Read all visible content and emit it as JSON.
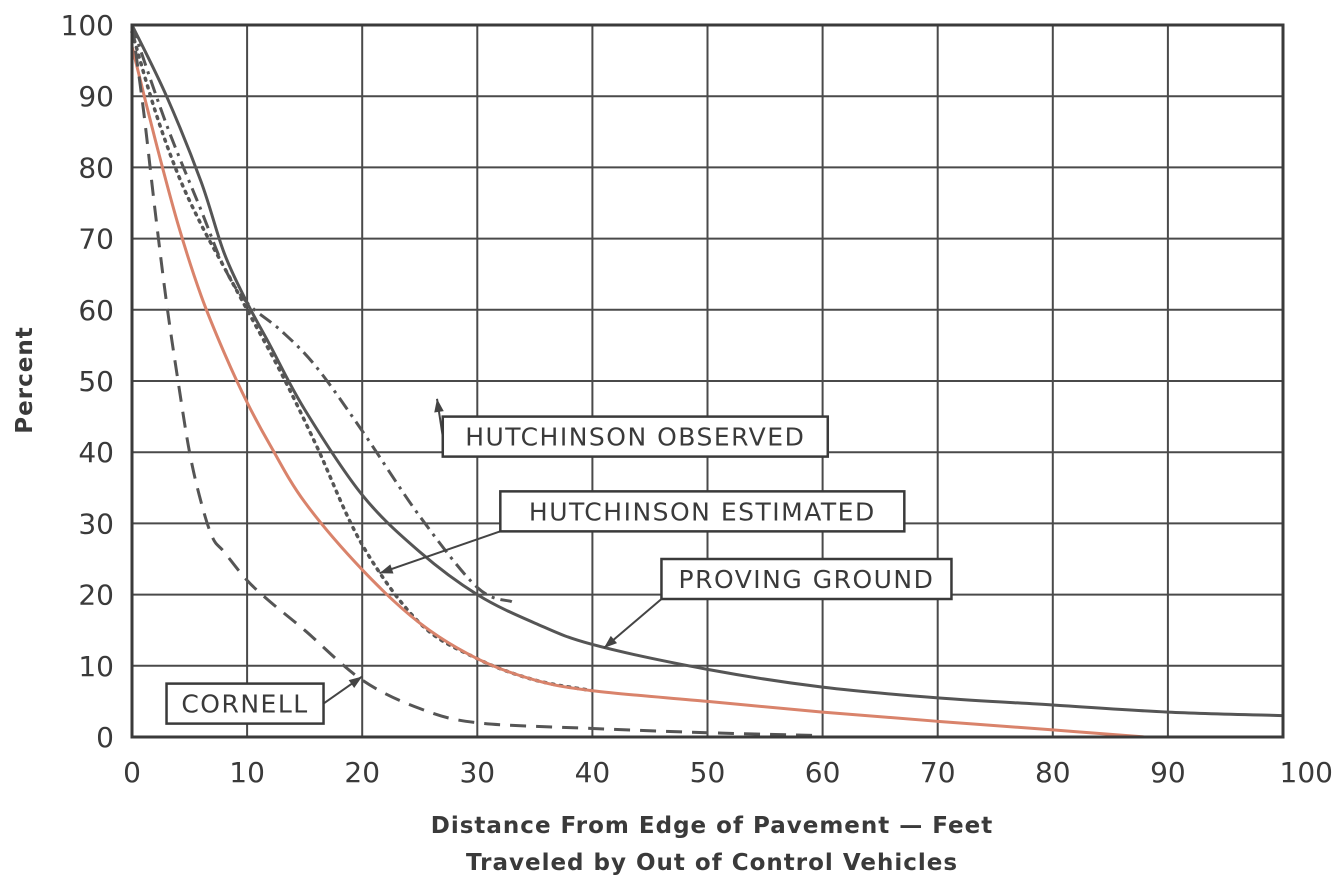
{
  "chart_data": {
    "type": "line",
    "xlabel_lines": [
      "Distance From Edge of Pavement — Feet",
      "Traveled by Out of Control Vehicles"
    ],
    "ylabel": "Percent",
    "xlim": [
      0,
      100
    ],
    "ylim": [
      0,
      100
    ],
    "x_ticks": [
      0,
      10,
      20,
      30,
      40,
      50,
      60,
      70,
      80,
      90,
      100
    ],
    "y_ticks": [
      0,
      10,
      20,
      30,
      40,
      50,
      60,
      70,
      80,
      90,
      100
    ],
    "grid": true,
    "series": [
      {
        "name": "PROVING GROUND",
        "style": "solid",
        "color": "#555555",
        "x": [
          0,
          3,
          6,
          8,
          10,
          12,
          15,
          20,
          25,
          30,
          35,
          40,
          50,
          60,
          70,
          80,
          90,
          100
        ],
        "y": [
          100,
          90,
          78,
          68,
          61,
          55,
          46,
          34,
          26,
          20,
          16,
          13,
          9.5,
          7,
          5.5,
          4.5,
          3.5,
          3
        ]
      },
      {
        "name": "HUTCHINSON OBSERVED",
        "style": "dashdot",
        "color": "#555555",
        "x": [
          0,
          3,
          6,
          8,
          10,
          13,
          16,
          20,
          25,
          30,
          33
        ],
        "y": [
          100,
          86,
          74,
          66,
          61,
          57,
          52,
          43,
          31,
          21,
          19
        ]
      },
      {
        "name": "HUTCHINSON ESTIMATED",
        "style": "dotted",
        "color": "#555555",
        "x": [
          0,
          2,
          4,
          6,
          8,
          10,
          13,
          16,
          20,
          25,
          30,
          35,
          40
        ],
        "y": [
          99,
          88,
          79,
          72,
          66,
          60,
          51,
          41,
          27,
          16,
          11,
          8,
          6.5
        ]
      },
      {
        "name": "",
        "style": "solid",
        "color": "#d9836b",
        "x": [
          0,
          2,
          4,
          6,
          8,
          10,
          12,
          15,
          20,
          25,
          30,
          35,
          40,
          50,
          60,
          70,
          80,
          88
        ],
        "y": [
          97,
          84,
          72,
          62,
          54,
          47,
          41,
          33,
          23.5,
          16,
          11,
          8,
          6.5,
          5,
          3.5,
          2.2,
          1,
          0
        ]
      },
      {
        "name": "CORNELL",
        "style": "dashed",
        "color": "#555555",
        "x": [
          0,
          1,
          2,
          3,
          4,
          5,
          6,
          7,
          8,
          10,
          12,
          15,
          20,
          25,
          30,
          40,
          50,
          60
        ],
        "y": [
          100,
          88,
          74,
          61,
          50,
          40,
          33,
          28,
          26,
          22,
          19,
          15,
          8,
          4,
          2,
          1.2,
          0.6,
          0.2
        ]
      }
    ],
    "annotations": [
      {
        "text": "HUTCHINSON OBSERVED",
        "box_x": 27,
        "box_y": 45,
        "arrow_to": [
          26.5,
          47.5
        ]
      },
      {
        "text": "HUTCHINSON ESTIMATED",
        "box_x": 32,
        "box_y": 34.5,
        "arrow_to": [
          21.5,
          23
        ]
      },
      {
        "text": "PROVING GROUND",
        "box_x": 46,
        "box_y": 25,
        "arrow_to": [
          41,
          12.5
        ]
      },
      {
        "text": "CORNELL",
        "box_x": 3,
        "box_y": 7.5,
        "arrow_to": [
          20,
          8.5
        ]
      }
    ]
  }
}
